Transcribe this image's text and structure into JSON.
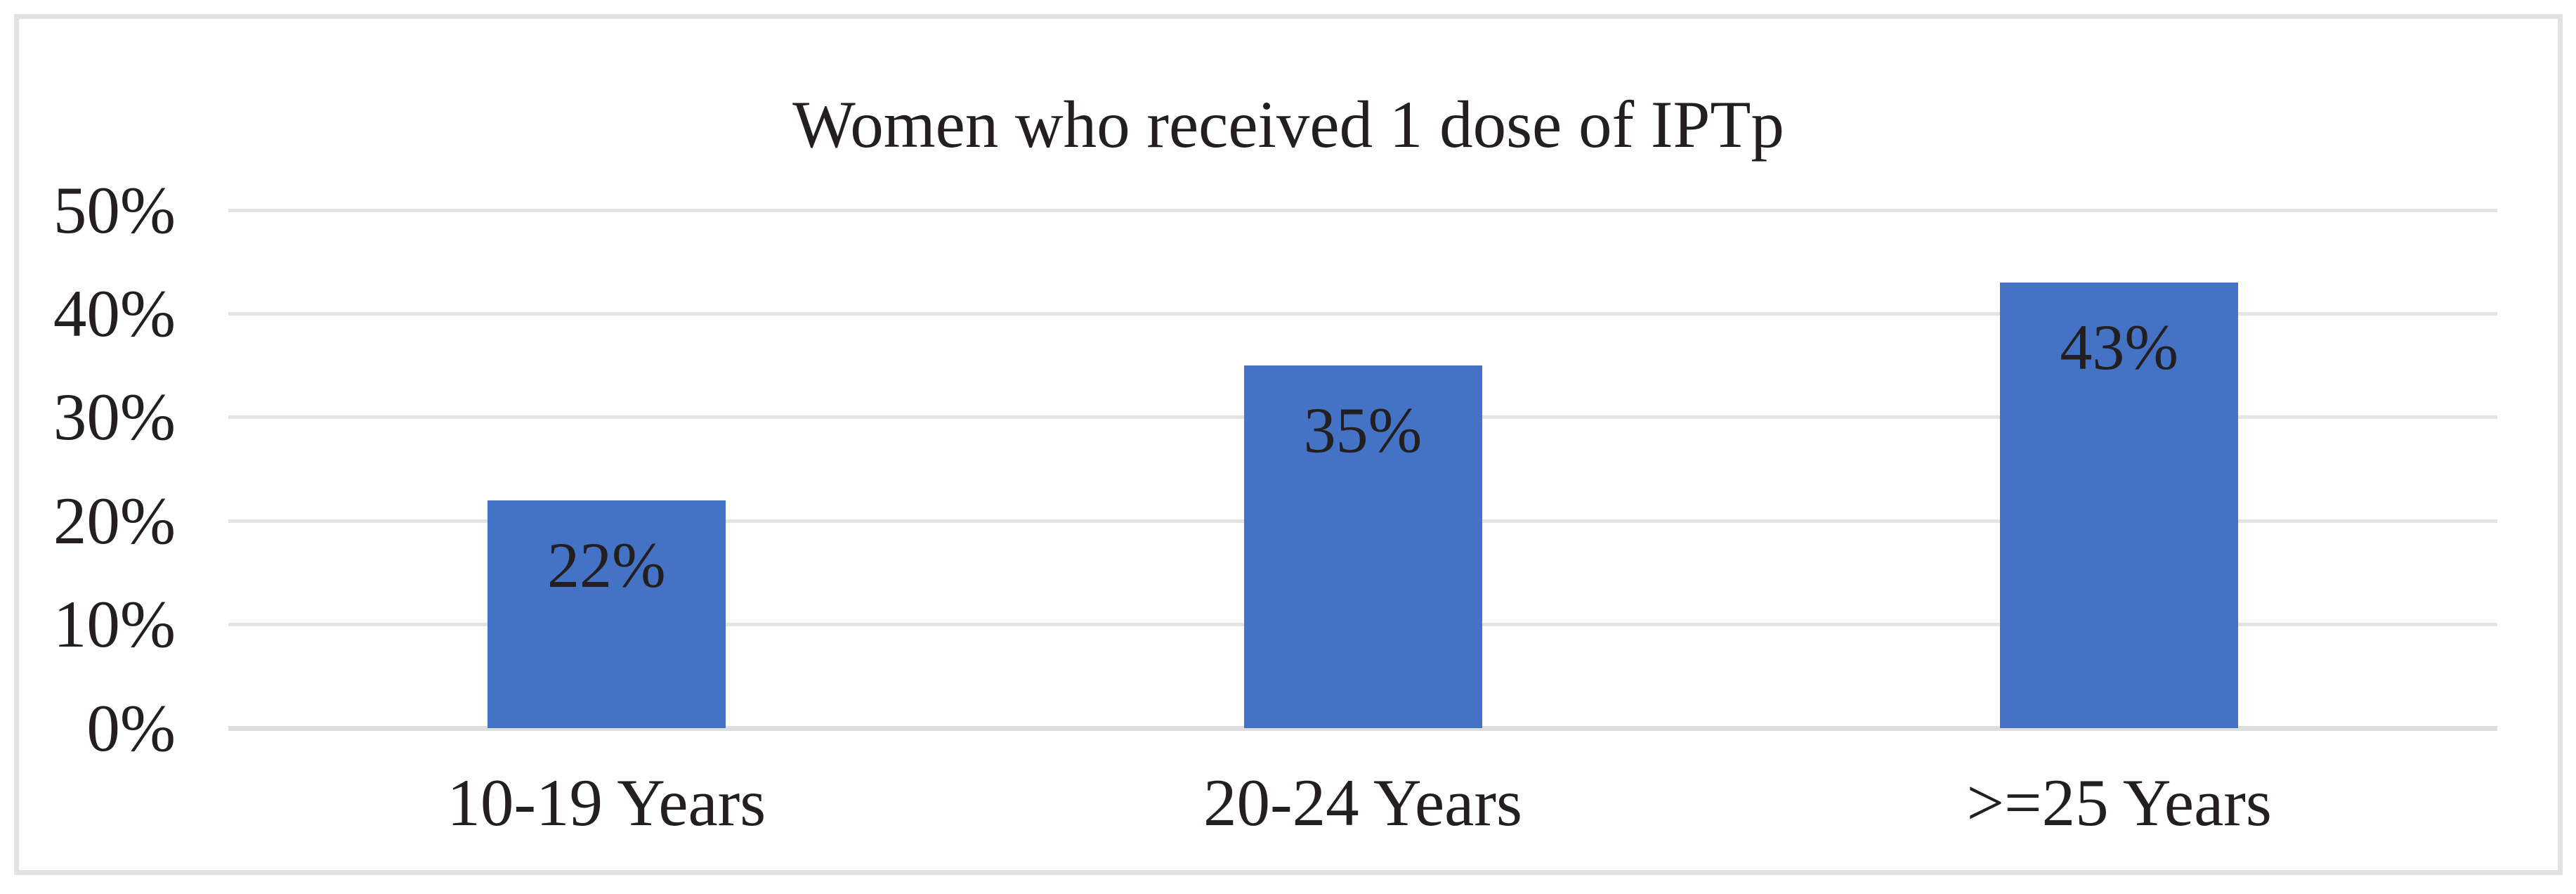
{
  "chart_data": {
    "type": "bar",
    "title": "Women who received 1 dose of IPTp",
    "categories": [
      "10-19 Years",
      "20-24 Years",
      ">=25 Years"
    ],
    "values": [
      22,
      35,
      43
    ],
    "data_labels": [
      "22%",
      "35%",
      "43%"
    ],
    "series_count": 1,
    "y_ticks": [
      {
        "value": 0,
        "label": "0%"
      },
      {
        "value": 10,
        "label": "10%"
      },
      {
        "value": 20,
        "label": "20%"
      },
      {
        "value": 30,
        "label": "30%"
      },
      {
        "value": 40,
        "label": "40%"
      },
      {
        "value": 50,
        "label": "50%"
      }
    ],
    "ylim": [
      0,
      50
    ],
    "grid": "horizontal",
    "legend": "none",
    "colors": {
      "bar": "#4472C4",
      "text": "#231f20",
      "gridline": "#e4e4e4",
      "axis_line": "#dddddd",
      "frame_border": "#e2e2e2",
      "background": "#ffffff"
    }
  }
}
